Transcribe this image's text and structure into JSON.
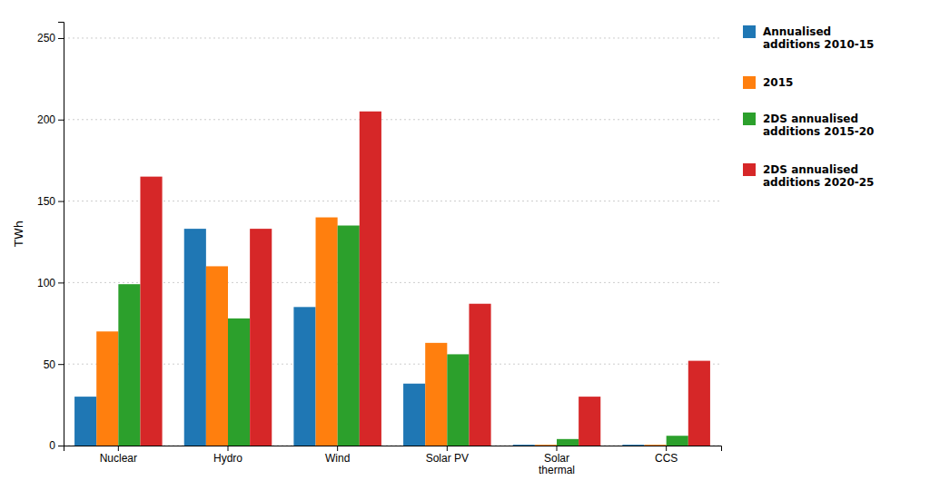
{
  "chart_data": {
    "type": "bar",
    "categories": [
      "Nuclear",
      "Hydro",
      "Wind",
      "Solar PV",
      "Solar\nthermal",
      "CCS"
    ],
    "series": [
      {
        "name": "Annualised\nadditions 2010-15",
        "values": [
          30,
          133,
          85,
          38,
          0.5,
          0.5
        ]
      },
      {
        "name": "2015",
        "values": [
          70,
          110,
          140,
          63,
          0.5,
          0.5
        ]
      },
      {
        "name": "2DS annualised\nadditions 2015-20",
        "values": [
          99,
          78,
          135,
          56,
          4,
          6
        ]
      },
      {
        "name": "2DS annualised\nadditions 2020-25",
        "values": [
          165,
          133,
          205,
          87,
          30,
          52
        ]
      }
    ],
    "ylabel": "TWh",
    "ylim": [
      0,
      260
    ],
    "yticks": [
      0,
      50,
      100,
      150,
      200,
      250
    ],
    "grid": true,
    "legend": "right"
  }
}
